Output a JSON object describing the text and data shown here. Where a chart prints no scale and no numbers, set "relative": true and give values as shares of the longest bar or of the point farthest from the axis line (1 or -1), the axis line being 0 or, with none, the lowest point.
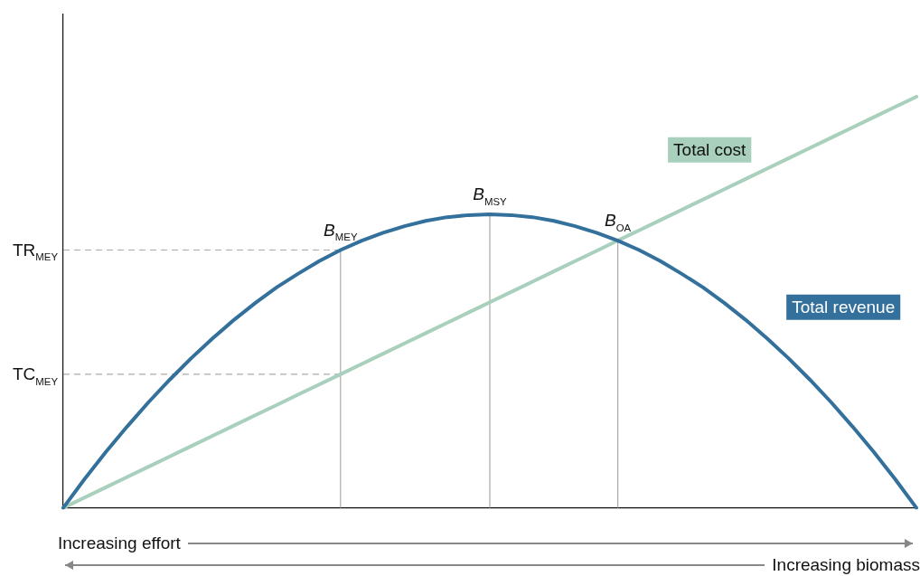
{
  "chart_data": {
    "type": "line",
    "relative": true,
    "grid": false,
    "legend": false,
    "marker": "none",
    "categories": [
      null,
      null,
      null,
      null,
      null,
      null,
      null,
      null,
      null,
      null,
      null,
      null,
      null,
      null,
      null,
      null,
      null,
      null,
      null,
      null,
      null,
      null,
      null,
      null,
      null,
      null,
      null,
      null,
      null,
      null,
      null,
      null,
      null,
      null,
      null,
      null,
      null,
      null,
      null,
      null,
      null
    ],
    "series": [
      {
        "name": "Total revenue",
        "color": "#33709c",
        "values": [
          0,
          0.07,
          0.136,
          0.198,
          0.257,
          0.312,
          0.364,
          0.412,
          0.457,
          0.498,
          0.536,
          0.569,
          0.6,
          0.627,
          0.65,
          0.669,
          0.685,
          0.698,
          0.707,
          0.712,
          0.714,
          0.712,
          0.707,
          0.698,
          0.685,
          0.669,
          0.65,
          0.627,
          0.6,
          0.569,
          0.536,
          0.498,
          0.457,
          0.412,
          0.364,
          0.312,
          0.257,
          0.198,
          0.136,
          0.07,
          0
        ]
      },
      {
        "name": "Total cost",
        "color": "#a8d0bc",
        "values": [
          0,
          0.025,
          0.05,
          0.075,
          0.1,
          0.125,
          0.15,
          0.175,
          0.2,
          0.225,
          0.25,
          0.275,
          0.3,
          0.325,
          0.35,
          0.375,
          0.4,
          0.425,
          0.45,
          0.475,
          0.5,
          0.525,
          0.55,
          0.575,
          0.6,
          0.625,
          0.65,
          0.675,
          0.7,
          0.725,
          0.75,
          0.775,
          0.8,
          0.825,
          0.85,
          0.875,
          0.9,
          0.925,
          0.95,
          0.975,
          1
        ]
      },
      {
        "name": "TR$_{MEY}$",
        "color": "#aaaaaa",
        "line_style": "dashed",
        "values": [
          0.627,
          0.627,
          0.627,
          0.627,
          0.627,
          0.627,
          0.627,
          0.627,
          0.627,
          0.627,
          0.627,
          0.627,
          0.627,
          0.627,
          null,
          null,
          null,
          null,
          null,
          null,
          null,
          null,
          null,
          null,
          null,
          null,
          null,
          null,
          null,
          null,
          null,
          null,
          null,
          null,
          null,
          null,
          null,
          null,
          null,
          null,
          null
        ]
      },
      {
        "name": "TC$_{MEY}$",
        "color": "#aaaaaa",
        "line_style": "dashed",
        "values": [
          0.325,
          0.325,
          0.325,
          0.325,
          0.325,
          0.325,
          0.325,
          0.325,
          0.325,
          0.325,
          0.325,
          0.325,
          0.325,
          0.325,
          null,
          null,
          null,
          null,
          null,
          null,
          null,
          null,
          null,
          null,
          null,
          null,
          null,
          null,
          null,
          null,
          null,
          null,
          null,
          null,
          null,
          null,
          null,
          null,
          null,
          null,
          null
        ]
      }
    ],
    "annotations": [
      {
        "text": "B$_{MEY}$",
        "y": 0.627
      },
      {
        "text": "B$_{MSY}$",
        "y": 0.714
      },
      {
        "text": "B$_{OA}$",
        "y": 0.65
      },
      "Increasing effort",
      "Increasing biomass"
    ]
  }
}
